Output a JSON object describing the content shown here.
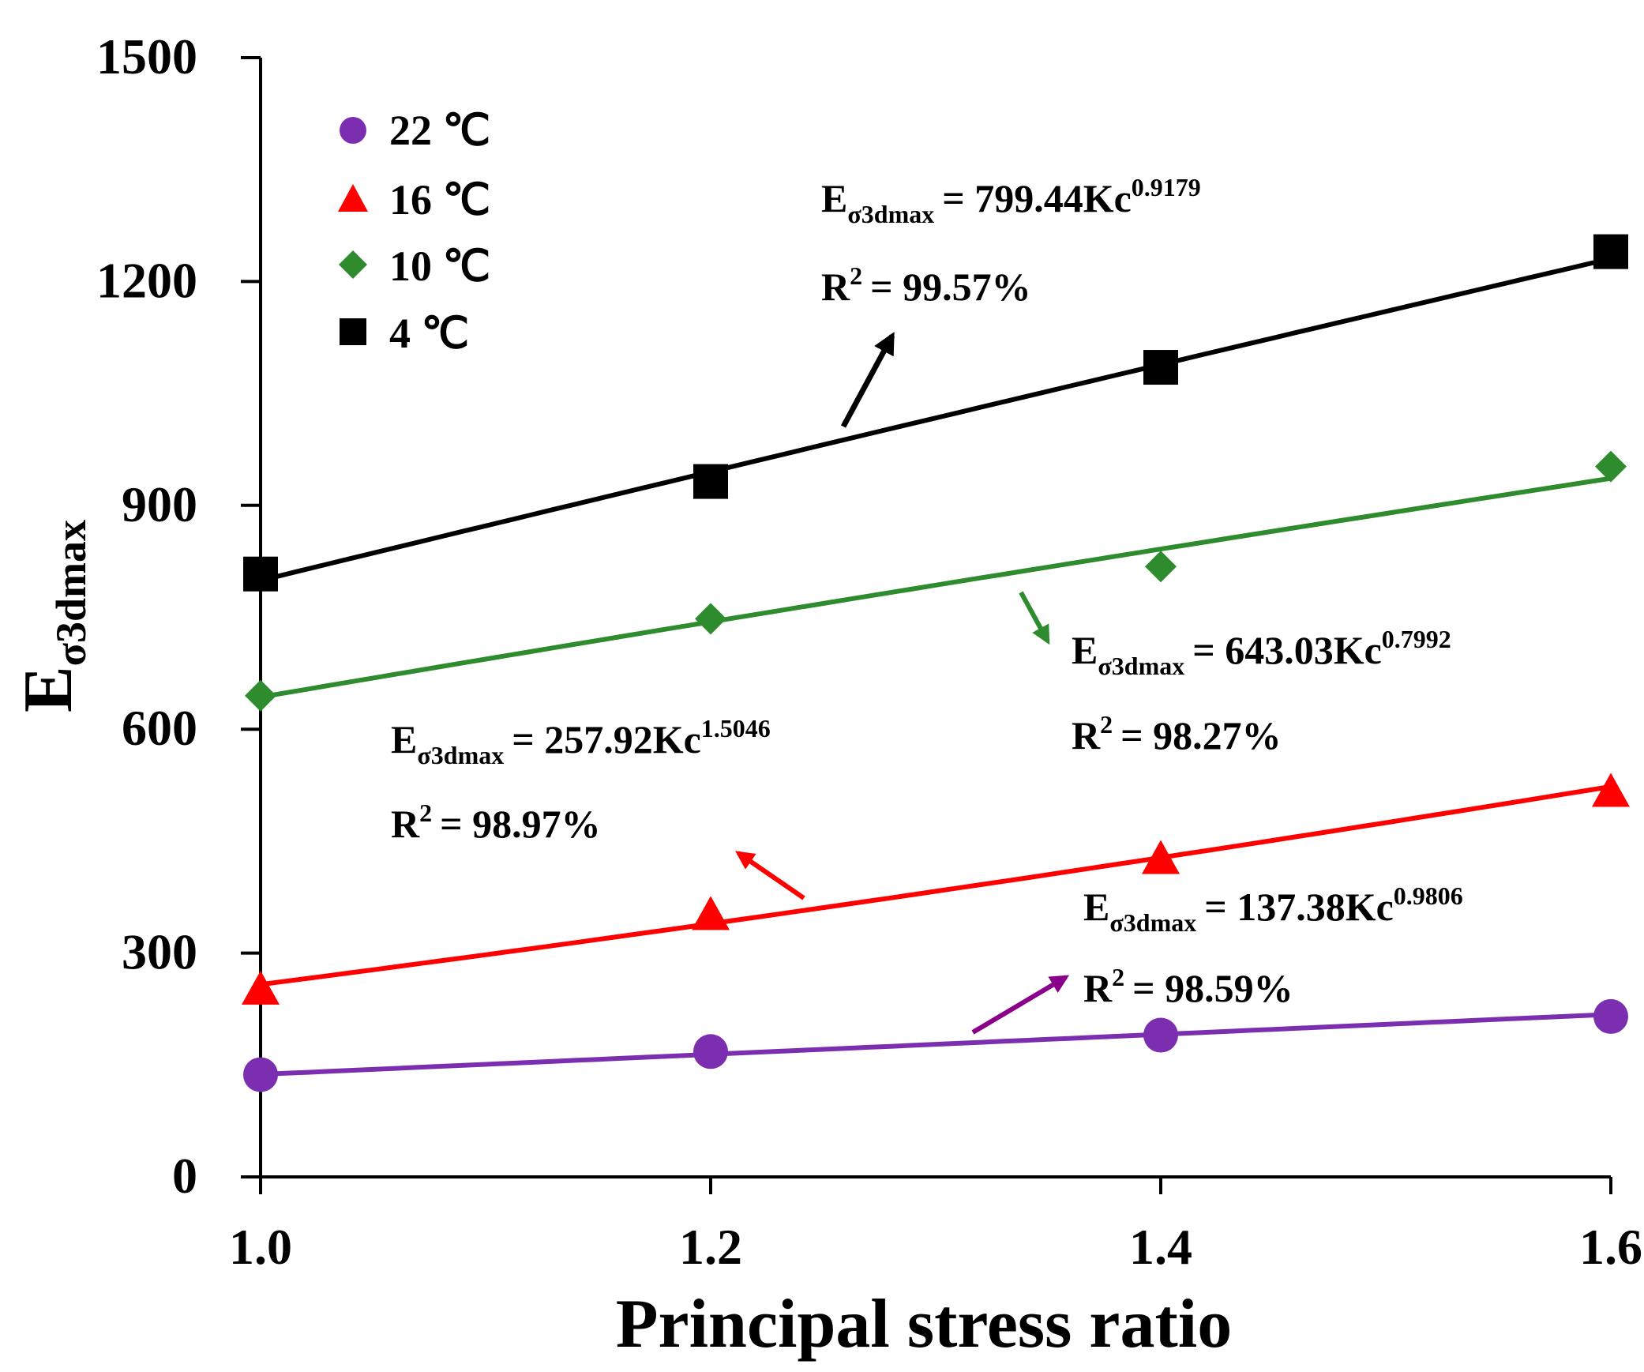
{
  "chart_data": {
    "type": "scatter",
    "xlabel": "Principal stress ratio",
    "ylabel": {
      "main": "E",
      "sub": "σ3dmax"
    },
    "xlim": [
      1.0,
      1.6
    ],
    "ylim": [
      0,
      1500
    ],
    "xticks": [
      1.0,
      1.2,
      1.4,
      1.6
    ],
    "xtick_labels": [
      "1.0",
      "1.2",
      "1.4",
      "1.6"
    ],
    "yticks": [
      0,
      300,
      600,
      900,
      1200,
      1500
    ],
    "ytick_labels": [
      "0",
      "300",
      "600",
      "900",
      "1200",
      "1500"
    ],
    "grid": false,
    "legend_position": "top-left",
    "x": [
      1.0,
      1.2,
      1.4,
      1.6
    ],
    "series": [
      {
        "name": "22 ℃",
        "marker": "circle",
        "color": "#7B2FB0",
        "values": [
          137,
          168,
          190,
          215
        ],
        "fit": {
          "a": 137.38,
          "b": 0.9806
        },
        "equation": {
          "lhs": "E",
          "sub": "σ3dmax",
          "rhs": "= 137.38Kc",
          "sup": "0.9806"
        },
        "r2": {
          "base": "R",
          "sup": "2",
          "rest": "= 98.59%"
        },
        "arrow_color": "#8B008B"
      },
      {
        "name": "16 ℃",
        "marker": "triangle",
        "color": "#FF0000",
        "values": [
          250,
          350,
          425,
          515
        ],
        "fit": {
          "a": 257.92,
          "b": 1.5046
        },
        "equation": {
          "lhs": "E",
          "sub": "σ3dmax",
          "rhs": "= 257.92Kc",
          "sup": "1.5046"
        },
        "r2": {
          "base": "R",
          "sup": "2",
          "rest": "= 98.97%"
        },
        "arrow_color": "#FF0000"
      },
      {
        "name": "10 ℃",
        "marker": "diamond",
        "color": "#2E8B2E",
        "values": [
          645,
          748,
          818,
          952
        ],
        "fit": {
          "a": 643.03,
          "b": 0.7992
        },
        "equation": {
          "lhs": "E",
          "sub": "σ3dmax",
          "rhs": "= 643.03Kc",
          "sup": "0.7992"
        },
        "r2": {
          "base": "R",
          "sup": "2",
          "rest": "= 98.27%"
        },
        "arrow_color": "#2E8B2E"
      },
      {
        "name": "4 ℃",
        "marker": "square",
        "color": "#000000",
        "values": [
          808,
          932,
          1085,
          1240
        ],
        "fit": {
          "a": 799.44,
          "b": 0.9179
        },
        "equation": {
          "lhs": "E",
          "sub": "σ3dmax",
          "rhs": "= 799.44Kc",
          "sup": "0.9179"
        },
        "r2": {
          "base": "R",
          "sup": "2",
          "rest": "= 99.57%"
        },
        "arrow_color": "#000000"
      }
    ]
  }
}
